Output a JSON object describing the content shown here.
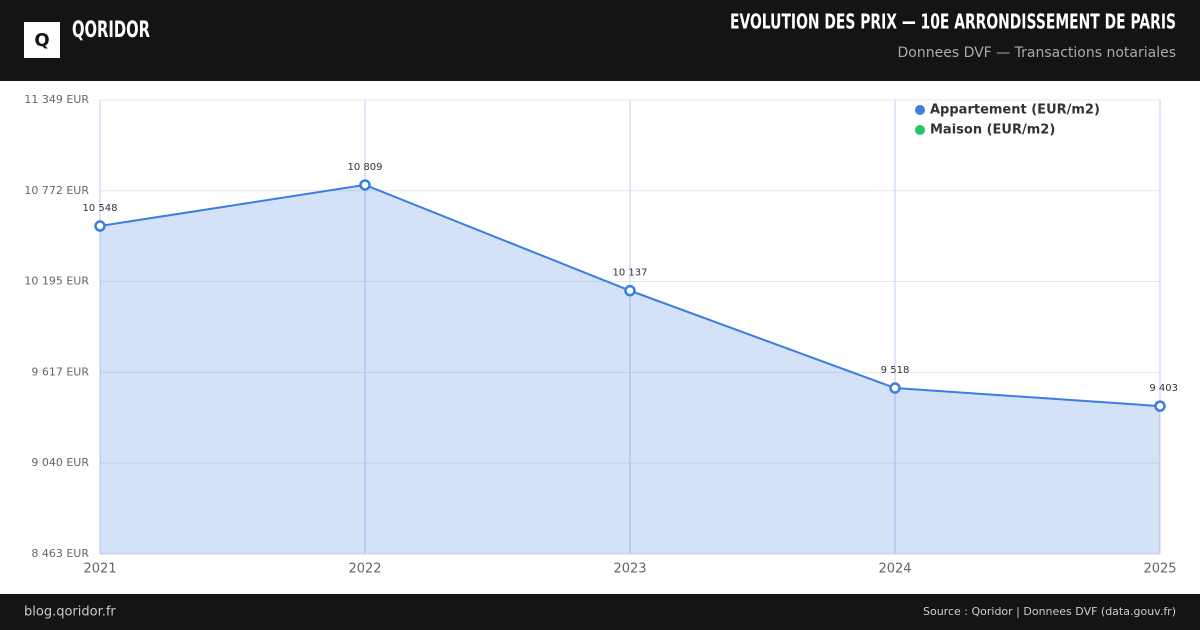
{
  "header": {
    "logo": "Q",
    "brand": "QORIDOR",
    "title": "EVOLUTION DES PRIX — 10E ARRONDISSEMENT DE PARIS",
    "subtitle": "Donnees DVF — Transactions notariales"
  },
  "chart_data": {
    "type": "line",
    "categories": [
      "2021",
      "2022",
      "2023",
      "2024",
      "2025"
    ],
    "series": [
      {
        "name": "Appartement (EUR/m2)",
        "color": "#3b7de0",
        "values": [
          10548,
          10809,
          10137,
          9518,
          9403
        ],
        "value_labels": [
          "10 548",
          "10 809",
          "10 137",
          "9 518",
          "9 403"
        ]
      },
      {
        "name": "Maison (EUR/m2)",
        "color": "#22c55e",
        "values": [
          null,
          null,
          null,
          null,
          null
        ]
      }
    ],
    "ylim": [
      8463,
      11349
    ],
    "yticks": [
      {
        "value": 8463,
        "label": "8 463 EUR"
      },
      {
        "value": 9040,
        "label": "9 040 EUR"
      },
      {
        "value": 9617,
        "label": "9 617 EUR"
      },
      {
        "value": 10195,
        "label": "10 195 EUR"
      },
      {
        "value": 10772,
        "label": "10 772 EUR"
      },
      {
        "value": 11349,
        "label": "11 349 EUR"
      }
    ],
    "grid": true,
    "area": true,
    "legend": "top-right"
  },
  "footer": {
    "left": "blog.qoridor.fr",
    "right": "Source : Qoridor | Donnees DVF (data.gouv.fr)"
  }
}
